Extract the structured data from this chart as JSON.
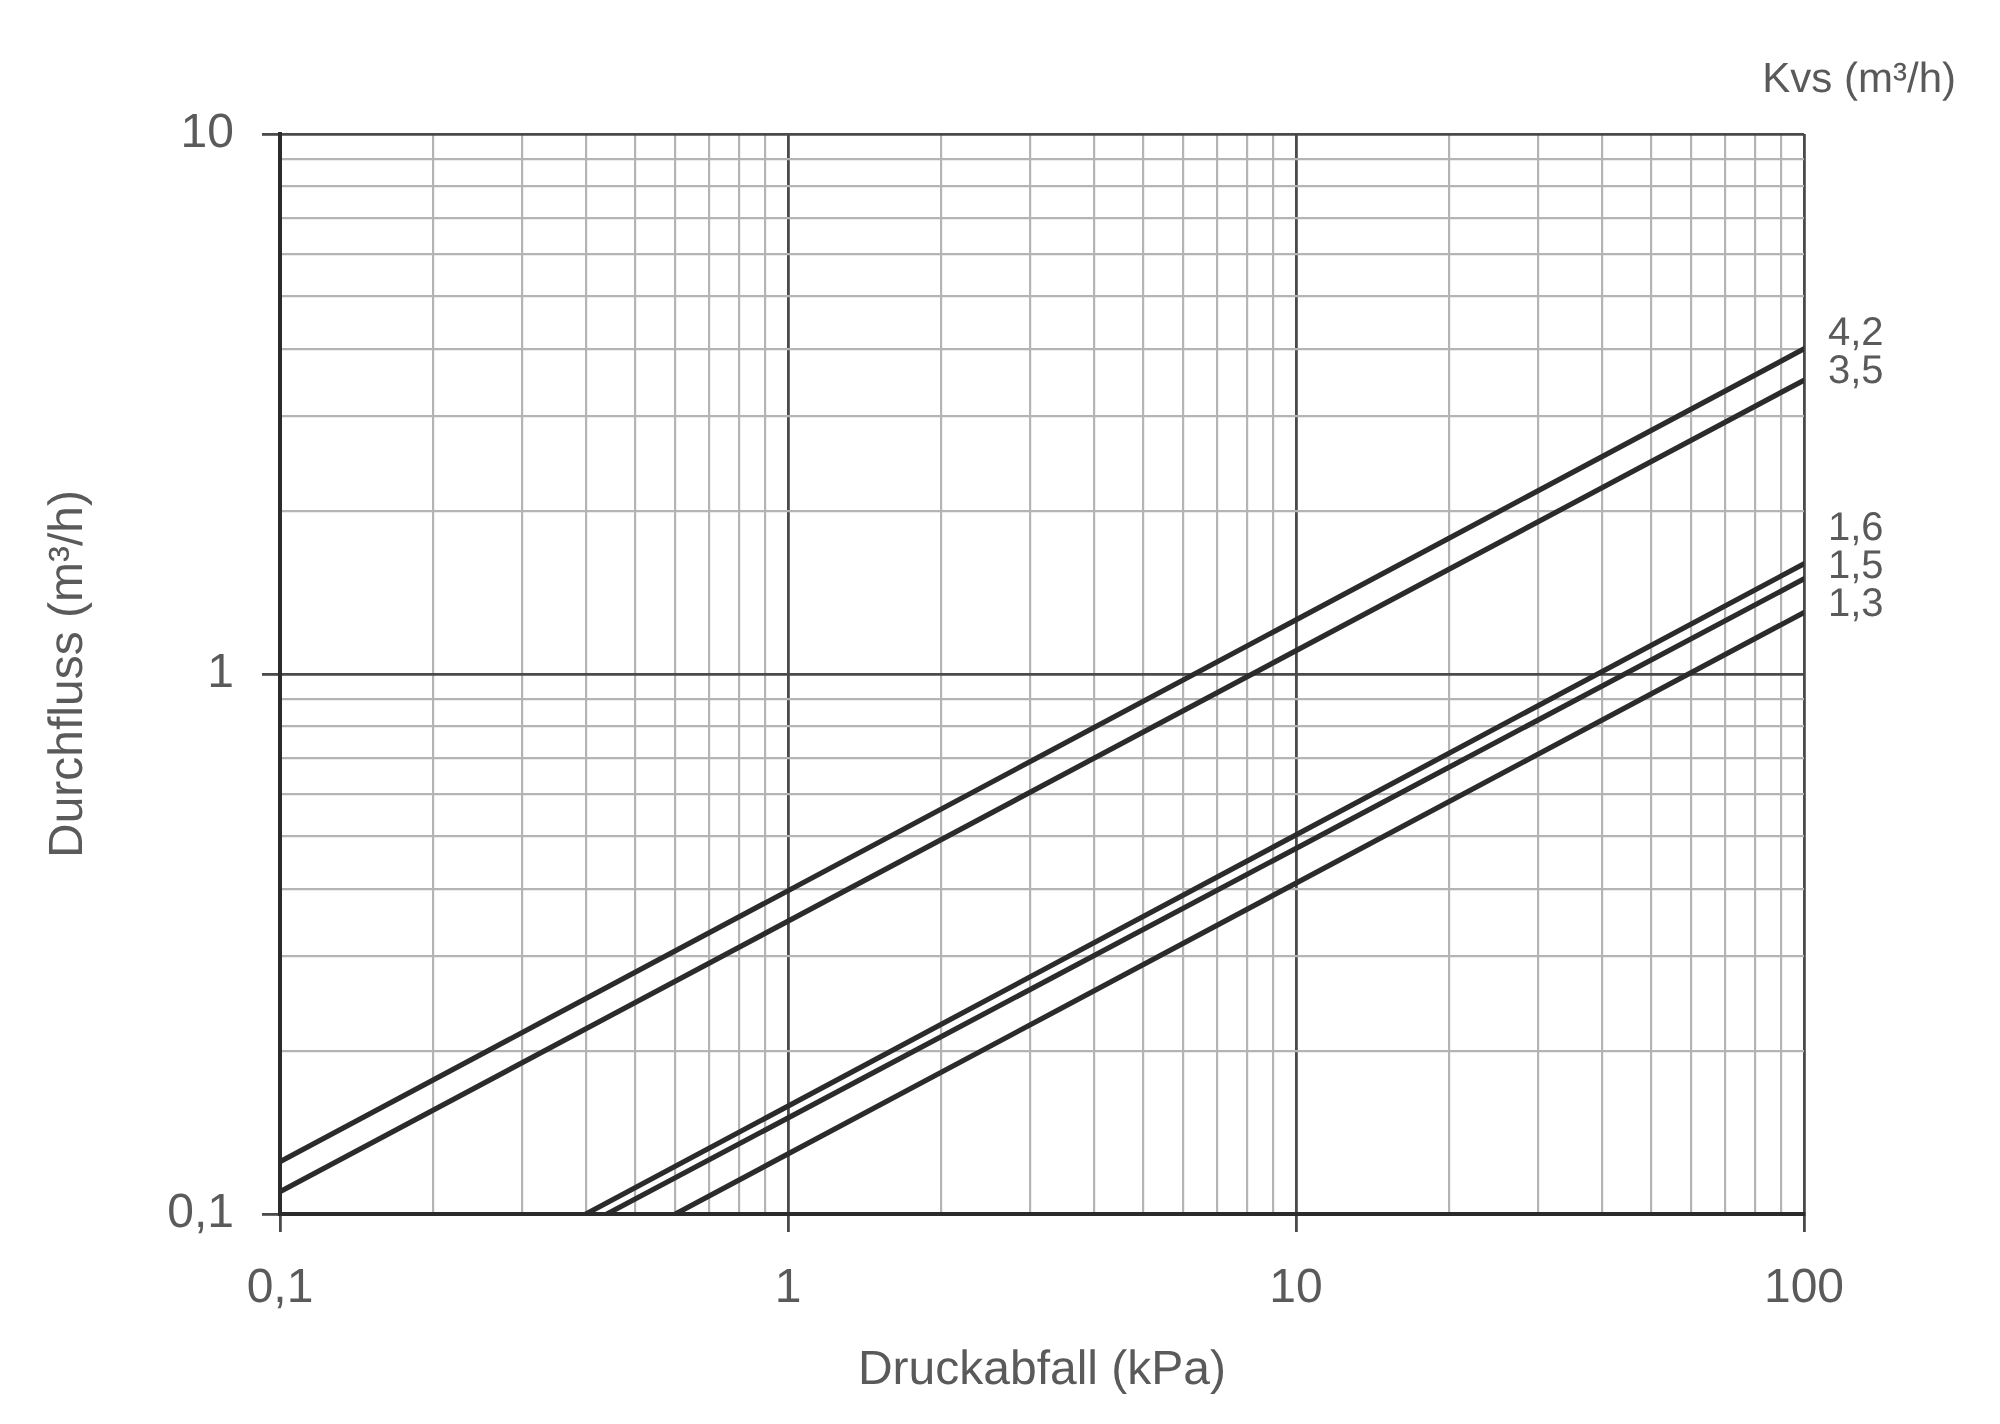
{
  "chart_data": {
    "type": "line",
    "xlabel": "Druckabfall (kPa)",
    "ylabel": "Durchfluss (m³/h)",
    "legend_title": "Kvs (m³/h)",
    "log": "xy",
    "grid": true,
    "marker": "none",
    "line_style": "solid",
    "xlim": [
      0.1,
      100
    ],
    "ylim": [
      0.1,
      10
    ],
    "xticks": [
      {
        "value": 0.1,
        "label": "0,1"
      },
      {
        "value": 0.2,
        "label": null
      },
      {
        "value": 0.3,
        "label": null
      },
      {
        "value": 0.4,
        "label": null
      },
      {
        "value": 0.5,
        "label": null
      },
      {
        "value": 0.6,
        "label": null
      },
      {
        "value": 0.7,
        "label": null
      },
      {
        "value": 0.8,
        "label": null
      },
      {
        "value": 0.9,
        "label": null
      },
      1,
      {
        "value": 2,
        "label": null
      },
      {
        "value": 3,
        "label": null
      },
      {
        "value": 4,
        "label": null
      },
      {
        "value": 5,
        "label": null
      },
      {
        "value": 6,
        "label": null
      },
      {
        "value": 7,
        "label": null
      },
      {
        "value": 8,
        "label": null
      },
      {
        "value": 9,
        "label": null
      },
      10,
      {
        "value": 20,
        "label": null
      },
      {
        "value": 30,
        "label": null
      },
      {
        "value": 40,
        "label": null
      },
      {
        "value": 50,
        "label": null
      },
      {
        "value": 60,
        "label": null
      },
      {
        "value": 70,
        "label": null
      },
      {
        "value": 80,
        "label": null
      },
      {
        "value": 90,
        "label": null
      },
      100
    ],
    "yticks": [
      {
        "value": 0.1,
        "label": "0,1"
      },
      {
        "value": 0.2,
        "label": null
      },
      {
        "value": 0.3,
        "label": null
      },
      {
        "value": 0.4,
        "label": null
      },
      {
        "value": 0.5,
        "label": null
      },
      {
        "value": 0.6,
        "label": null
      },
      {
        "value": 0.7,
        "label": null
      },
      {
        "value": 0.8,
        "label": null
      },
      {
        "value": 0.9,
        "label": null
      },
      1,
      {
        "value": 2,
        "label": null
      },
      {
        "value": 3,
        "label": null
      },
      {
        "value": 4,
        "label": null
      },
      {
        "value": 5,
        "label": null
      },
      {
        "value": 6,
        "label": null
      },
      {
        "value": 7,
        "label": null
      },
      {
        "value": 8,
        "label": null
      },
      {
        "value": 9,
        "label": null
      },
      10
    ],
    "series": [
      {
        "name": "4,2",
        "color": "#2b2b2b",
        "x": [
          0.1,
          100
        ],
        "values": [
          0.125,
          4.0
        ]
      },
      {
        "name": "3,5",
        "color": "#2b2b2b",
        "x": [
          0.1,
          100
        ],
        "values": [
          0.11,
          3.5
        ]
      },
      {
        "name": "1,6",
        "color": "#2b2b2b",
        "x": [
          0.4,
          100
        ],
        "values": [
          0.1,
          1.6
        ]
      },
      {
        "name": "1,5",
        "color": "#2b2b2b",
        "x": [
          0.44,
          100
        ],
        "values": [
          0.1,
          1.5
        ]
      },
      {
        "name": "1,3",
        "color": "#2b2b2b",
        "x": [
          0.6,
          100
        ],
        "values": [
          0.1,
          1.3
        ]
      }
    ]
  }
}
